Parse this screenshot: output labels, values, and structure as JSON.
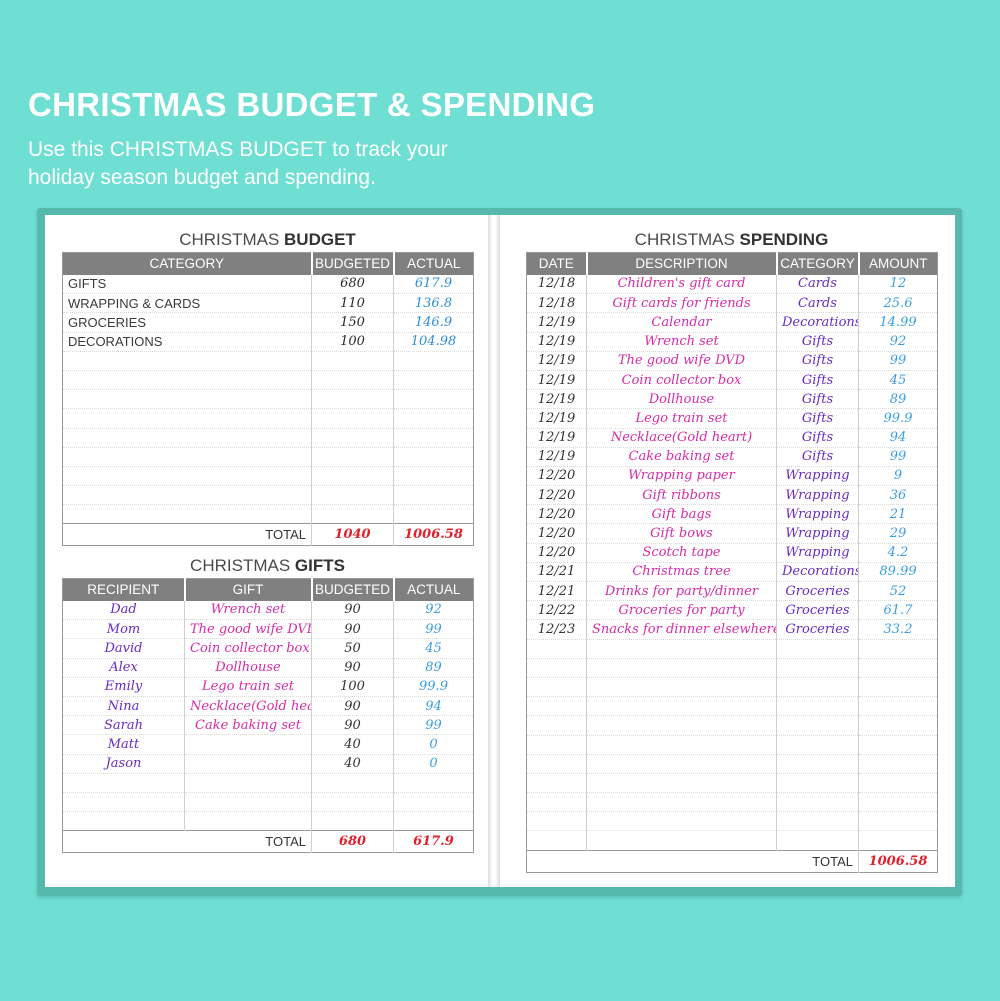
{
  "hero": {
    "title": "CHRISTMAS BUDGET & SPENDING",
    "subtitle_line1": "Use this CHRISTMAS BUDGET to track your",
    "subtitle_line2": "holiday season budget and spending."
  },
  "budget": {
    "title_pre": "CHRISTMAS ",
    "title_bold": "BUDGET",
    "headers": [
      "CATEGORY",
      "BUDGETED",
      "ACTUAL"
    ],
    "rows": [
      {
        "category": "GIFTS",
        "budgeted": "680",
        "actual": "617.9"
      },
      {
        "category": "WRAPPING & CARDS",
        "budgeted": "110",
        "actual": "136.8"
      },
      {
        "category": "GROCERIES",
        "budgeted": "150",
        "actual": "146.9"
      },
      {
        "category": "DECORATIONS",
        "budgeted": "100",
        "actual": "104.98"
      }
    ],
    "total_label": "TOTAL",
    "total_budgeted": "1040",
    "total_actual": "1006.58"
  },
  "gifts": {
    "title_pre": "CHRISTMAS ",
    "title_bold": "GIFTS",
    "headers": [
      "RECIPIENT",
      "GIFT",
      "BUDGETED",
      "ACTUAL"
    ],
    "rows": [
      {
        "recipient": "Dad",
        "gift": "Wrench set",
        "budgeted": "90",
        "actual": "92"
      },
      {
        "recipient": "Mom",
        "gift": "The good wife DVD",
        "budgeted": "90",
        "actual": "99"
      },
      {
        "recipient": "David",
        "gift": "Coin collector box",
        "budgeted": "50",
        "actual": "45"
      },
      {
        "recipient": "Alex",
        "gift": "Dollhouse",
        "budgeted": "90",
        "actual": "89"
      },
      {
        "recipient": "Emily",
        "gift": "Lego train set",
        "budgeted": "100",
        "actual": "99.9"
      },
      {
        "recipient": "Nina",
        "gift": "Necklace(Gold heart)",
        "budgeted": "90",
        "actual": "94"
      },
      {
        "recipient": "Sarah",
        "gift": "Cake baking set",
        "budgeted": "90",
        "actual": "99"
      },
      {
        "recipient": "Matt",
        "gift": "",
        "budgeted": "40",
        "actual": "0"
      },
      {
        "recipient": "Jason",
        "gift": "",
        "budgeted": "40",
        "actual": "0"
      }
    ],
    "total_label": "TOTAL",
    "total_budgeted": "680",
    "total_actual": "617.9"
  },
  "spending": {
    "title_pre": "CHRISTMAS ",
    "title_bold": "SPENDING",
    "headers": [
      "DATE",
      "DESCRIPTION",
      "CATEGORY",
      "AMOUNT"
    ],
    "rows": [
      {
        "date": "12/18",
        "description": "Children's gift card",
        "category": "Cards",
        "amount": "12"
      },
      {
        "date": "12/18",
        "description": "Gift cards for friends",
        "category": "Cards",
        "amount": "25.6"
      },
      {
        "date": "12/19",
        "description": "Calendar",
        "category": "Decorations",
        "amount": "14.99"
      },
      {
        "date": "12/19",
        "description": "Wrench set",
        "category": "Gifts",
        "amount": "92"
      },
      {
        "date": "12/19",
        "description": "The good wife DVD",
        "category": "Gifts",
        "amount": "99"
      },
      {
        "date": "12/19",
        "description": "Coin collector box",
        "category": "Gifts",
        "amount": "45"
      },
      {
        "date": "12/19",
        "description": "Dollhouse",
        "category": "Gifts",
        "amount": "89"
      },
      {
        "date": "12/19",
        "description": "Lego train set",
        "category": "Gifts",
        "amount": "99.9"
      },
      {
        "date": "12/19",
        "description": "Necklace(Gold heart)",
        "category": "Gifts",
        "amount": "94"
      },
      {
        "date": "12/19",
        "description": "Cake baking set",
        "category": "Gifts",
        "amount": "99"
      },
      {
        "date": "12/20",
        "description": "Wrapping paper",
        "category": "Wrapping",
        "amount": "9"
      },
      {
        "date": "12/20",
        "description": "Gift ribbons",
        "category": "Wrapping",
        "amount": "36"
      },
      {
        "date": "12/20",
        "description": "Gift bags",
        "category": "Wrapping",
        "amount": "21"
      },
      {
        "date": "12/20",
        "description": "Gift bows",
        "category": "Wrapping",
        "amount": "29"
      },
      {
        "date": "12/20",
        "description": "Scotch tape",
        "category": "Wrapping",
        "amount": "4.2"
      },
      {
        "date": "12/21",
        "description": "Christmas tree",
        "category": "Decorations",
        "amount": "89.99"
      },
      {
        "date": "12/21",
        "description": "Drinks for party/dinner",
        "category": "Groceries",
        "amount": "52"
      },
      {
        "date": "12/22",
        "description": "Groceries for party",
        "category": "Groceries",
        "amount": "61.7"
      },
      {
        "date": "12/23",
        "description": "Snacks for dinner elsewhere",
        "category": "Groceries",
        "amount": "33.2"
      }
    ],
    "total_label": "TOTAL",
    "total_amount": "1006.58"
  }
}
